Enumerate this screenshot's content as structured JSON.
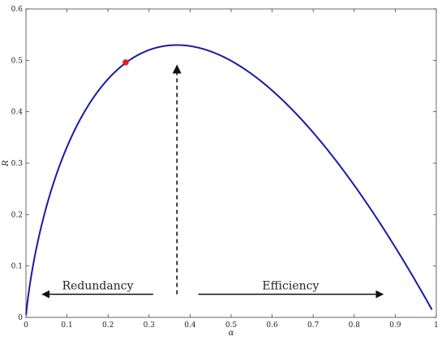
{
  "chart_data": {
    "type": "line",
    "xlabel": "α",
    "ylabel": "R",
    "xlim": [
      0,
      1
    ],
    "ylim": [
      0,
      0.6
    ],
    "grid": false,
    "x_ticks": [
      "0",
      "0.1",
      "0.2",
      "0.3",
      "0.4",
      "0.5",
      "0.6",
      "0.7",
      "0.8",
      "0.9",
      "1"
    ],
    "y_ticks": [
      "0",
      "0.1",
      "0.2",
      "0.3",
      "0.4",
      "0.5",
      "0.6"
    ],
    "series": [
      {
        "color": "#1a1aa6",
        "x": [
          0.001,
          0.01,
          0.03,
          0.05,
          0.08,
          0.1,
          0.13,
          0.16,
          0.2,
          0.25,
          0.3,
          0.35,
          0.368,
          0.4,
          0.45,
          0.5,
          0.55,
          0.6,
          0.65,
          0.7,
          0.75,
          0.8,
          0.85,
          0.9,
          0.95,
          0.99
        ],
        "y": [
          0.007,
          0.046,
          0.105,
          0.15,
          0.202,
          0.23,
          0.265,
          0.293,
          0.322,
          0.347,
          0.361,
          0.367,
          0.368,
          0.367,
          0.359,
          0.347,
          0.329,
          0.306,
          0.28,
          0.25,
          0.216,
          0.179,
          0.138,
          0.095,
          0.049,
          0.01
        ]
      }
    ],
    "y_scale_factor": 1.44,
    "highlight_point": {
      "x": 0.243,
      "y": 0.496,
      "color": "#e02020"
    },
    "annotations": [
      {
        "text": "Redundancy",
        "arrow": "left",
        "from_x": 0.31,
        "to_x": 0.04,
        "y": 0.045
      },
      {
        "text": "Efficiency",
        "arrow": "right",
        "from_x": 0.42,
        "to_x": 0.87,
        "y": 0.045
      },
      {
        "arrow": "up-dashed",
        "x": 0.368,
        "from_y": 0.045,
        "to_y": 0.49
      }
    ]
  }
}
